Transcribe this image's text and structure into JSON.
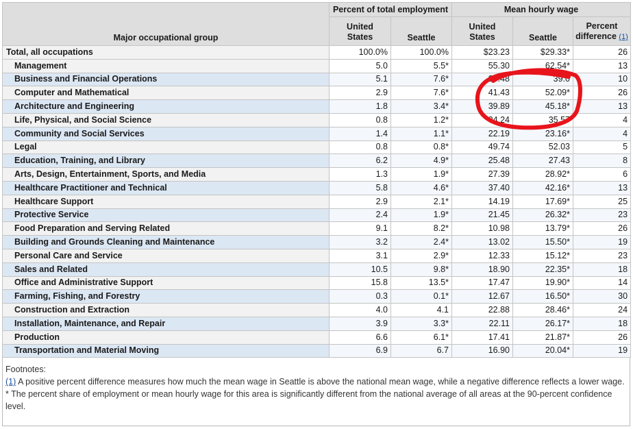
{
  "header": {
    "group_col": "Major occupational group",
    "employment_group": "Percent of total employment",
    "wage_group": "Mean hourly wage",
    "us": "United States",
    "seattle": "Seattle",
    "pct_diff": "Percent difference",
    "pct_diff_ref": "(1)"
  },
  "rows": [
    {
      "name": "Total, all occupations",
      "emp_us": "100.0%",
      "emp_sea": "100.0%",
      "wage_us": "$23.23",
      "wage_sea": "$29.33*",
      "diff": "26"
    },
    {
      "name": "Management",
      "emp_us": "5.0",
      "emp_sea": "5.5*",
      "wage_us": "55.30",
      "wage_sea": "62.54*",
      "diff": "13"
    },
    {
      "name": "Business and Financial Operations",
      "emp_us": "5.1",
      "emp_sea": "7.6*",
      "wage_us": "35.48",
      "wage_sea": "39.0",
      "diff": "10"
    },
    {
      "name": "Computer and Mathematical",
      "emp_us": "2.9",
      "emp_sea": "7.6*",
      "wage_us": "41.43",
      "wage_sea": "52.09*",
      "diff": "26"
    },
    {
      "name": "Architecture and Engineering",
      "emp_us": "1.8",
      "emp_sea": "3.4*",
      "wage_us": "39.89",
      "wage_sea": "45.18*",
      "diff": "13"
    },
    {
      "name": "Life, Physical, and Social Science",
      "emp_us": "0.8",
      "emp_sea": "1.2*",
      "wage_us": "34.24",
      "wage_sea": "35.57",
      "diff": "4"
    },
    {
      "name": "Community and Social Services",
      "emp_us": "1.4",
      "emp_sea": "1.1*",
      "wage_us": "22.19",
      "wage_sea": "23.16*",
      "diff": "4"
    },
    {
      "name": "Legal",
      "emp_us": "0.8",
      "emp_sea": "0.8*",
      "wage_us": "49.74",
      "wage_sea": "52.03",
      "diff": "5"
    },
    {
      "name": "Education, Training, and Library",
      "emp_us": "6.2",
      "emp_sea": "4.9*",
      "wage_us": "25.48",
      "wage_sea": "27.43",
      "diff": "8"
    },
    {
      "name": "Arts, Design, Entertainment, Sports, and Media",
      "emp_us": "1.3",
      "emp_sea": "1.9*",
      "wage_us": "27.39",
      "wage_sea": "28.92*",
      "diff": "6"
    },
    {
      "name": "Healthcare Practitioner and Technical",
      "emp_us": "5.8",
      "emp_sea": "4.6*",
      "wage_us": "37.40",
      "wage_sea": "42.16*",
      "diff": "13"
    },
    {
      "name": "Healthcare Support",
      "emp_us": "2.9",
      "emp_sea": "2.1*",
      "wage_us": "14.19",
      "wage_sea": "17.69*",
      "diff": "25"
    },
    {
      "name": "Protective Service",
      "emp_us": "2.4",
      "emp_sea": "1.9*",
      "wage_us": "21.45",
      "wage_sea": "26.32*",
      "diff": "23"
    },
    {
      "name": "Food Preparation and Serving Related",
      "emp_us": "9.1",
      "emp_sea": "8.2*",
      "wage_us": "10.98",
      "wage_sea": "13.79*",
      "diff": "26"
    },
    {
      "name": "Building and Grounds Cleaning and Maintenance",
      "emp_us": "3.2",
      "emp_sea": "2.4*",
      "wage_us": "13.02",
      "wage_sea": "15.50*",
      "diff": "19"
    },
    {
      "name": "Personal Care and Service",
      "emp_us": "3.1",
      "emp_sea": "2.9*",
      "wage_us": "12.33",
      "wage_sea": "15.12*",
      "diff": "23"
    },
    {
      "name": "Sales and Related",
      "emp_us": "10.5",
      "emp_sea": "9.8*",
      "wage_us": "18.90",
      "wage_sea": "22.35*",
      "diff": "18"
    },
    {
      "name": "Office and Administrative Support",
      "emp_us": "15.8",
      "emp_sea": "13.5*",
      "wage_us": "17.47",
      "wage_sea": "19.90*",
      "diff": "14"
    },
    {
      "name": "Farming, Fishing, and Forestry",
      "emp_us": "0.3",
      "emp_sea": "0.1*",
      "wage_us": "12.67",
      "wage_sea": "16.50*",
      "diff": "30"
    },
    {
      "name": "Construction and Extraction",
      "emp_us": "4.0",
      "emp_sea": "4.1",
      "wage_us": "22.88",
      "wage_sea": "28.46*",
      "diff": "24"
    },
    {
      "name": "Installation, Maintenance, and Repair",
      "emp_us": "3.9",
      "emp_sea": "3.3*",
      "wage_us": "22.11",
      "wage_sea": "26.17*",
      "diff": "18"
    },
    {
      "name": "Production",
      "emp_us": "6.6",
      "emp_sea": "6.1*",
      "wage_us": "17.41",
      "wage_sea": "21.87*",
      "diff": "26"
    },
    {
      "name": "Transportation and Material Moving",
      "emp_us": "6.9",
      "emp_sea": "6.7",
      "wage_us": "16.90",
      "wage_sea": "20.04*",
      "diff": "19"
    }
  ],
  "footnotes": {
    "heading": "Footnotes:",
    "note1_ref": "(1)",
    "note1_text": " A positive percent difference measures how much the mean wage in Seattle is above the national mean wage, while a negative difference reflects a lower wage.",
    "note2_text": "* The percent share of employment or mean hourly wage for this area is significantly different from the national average of all areas at the 90-percent confidence level."
  },
  "colors": {
    "header_bg": "#dedede",
    "name_odd_bg": "#f2f2f2",
    "name_even_bg": "#dce7f4",
    "link": "#1a4fa0",
    "annotation_circle": "#e8141b"
  }
}
